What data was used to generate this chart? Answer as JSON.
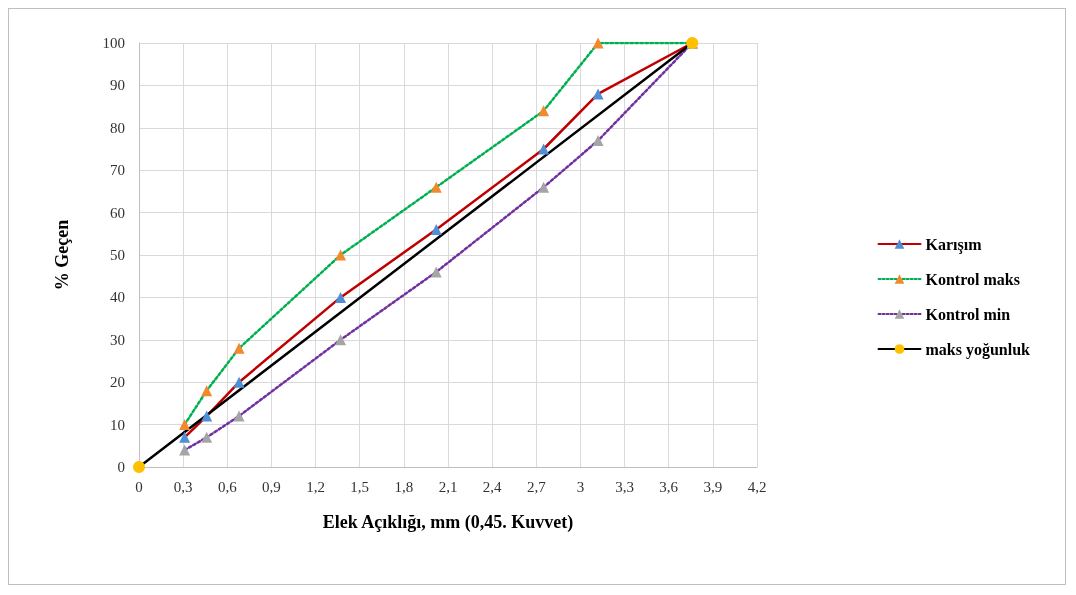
{
  "chart_data": {
    "type": "line",
    "xlabel": "Elek Açıklığı, mm (0,45. Kuvvet)",
    "ylabel": "% Geçen",
    "xlim": [
      0,
      4.2
    ],
    "xticks": [
      0,
      {
        "value": 0.3,
        "label": "0,3"
      },
      {
        "value": 0.6,
        "label": "0,6"
      },
      {
        "value": 0.9,
        "label": "0,9"
      },
      {
        "value": 1.2,
        "label": "1,2"
      },
      {
        "value": 1.5,
        "label": "1,5"
      },
      {
        "value": 1.8,
        "label": "1,8"
      },
      {
        "value": 2.1,
        "label": "2,1"
      },
      {
        "value": 2.4,
        "label": "2,4"
      },
      {
        "value": 2.7,
        "label": "2,7"
      },
      3,
      {
        "value": 3.3,
        "label": "3,3"
      },
      {
        "value": 3.6,
        "label": "3,6"
      },
      {
        "value": 3.9,
        "label": "3,9"
      },
      {
        "value": 4.2,
        "label": "4,2"
      }
    ],
    "ylim": [
      0,
      100
    ],
    "yticks": [
      0,
      10,
      20,
      30,
      40,
      50,
      60,
      70,
      80,
      90,
      100
    ],
    "grid": true,
    "legend": "right",
    "series": [
      {
        "name": "Karışım",
        "color": "#c00000",
        "colors": [
          "#4f8fd6",
          "#4f8fd6",
          "#4f8fd6",
          "#4f8fd6",
          "#4f8fd6",
          "#4f8fd6",
          "#4f8fd6",
          "#4f8fd6"
        ],
        "marker": "triangle",
        "line_style": "solid",
        "x": [
          0.31,
          0.46,
          0.68,
          1.37,
          2.02,
          2.75,
          3.12,
          3.76
        ],
        "values": [
          7,
          12,
          20,
          40,
          56,
          75,
          88,
          100
        ]
      },
      {
        "name": "Kontrol maks",
        "color": "#00b050",
        "colors": [
          "#f08a2c",
          "#f08a2c",
          "#f08a2c",
          "#f08a2c",
          "#f08a2c",
          "#f08a2c",
          "#f08a2c",
          "#f08a2c"
        ],
        "marker": "triangle",
        "line_style": "dotted",
        "x": [
          0.31,
          0.46,
          0.68,
          1.37,
          2.02,
          2.75,
          3.12,
          3.76
        ],
        "values": [
          10,
          18,
          28,
          50,
          66,
          84,
          100,
          100
        ]
      },
      {
        "name": "Kontrol min",
        "color": "#7030a0",
        "colors": [
          "#a5a5a5",
          "#a5a5a5",
          "#a5a5a5",
          "#a5a5a5",
          "#a5a5a5",
          "#a5a5a5",
          "#a5a5a5",
          "#a5a5a5"
        ],
        "marker": "triangle",
        "line_style": "dotted",
        "x": [
          0.31,
          0.46,
          0.68,
          1.37,
          2.02,
          2.75,
          3.12,
          3.76
        ],
        "values": [
          4,
          7,
          12,
          30,
          46,
          66,
          77,
          100
        ]
      },
      {
        "name": "maks yoğunluk",
        "color": "#000000",
        "colors": [
          "#ffc000",
          "#ffc000"
        ],
        "marker": "circle",
        "line_style": "solid",
        "x": [
          0,
          3.76
        ],
        "values": [
          0,
          100
        ]
      }
    ]
  }
}
